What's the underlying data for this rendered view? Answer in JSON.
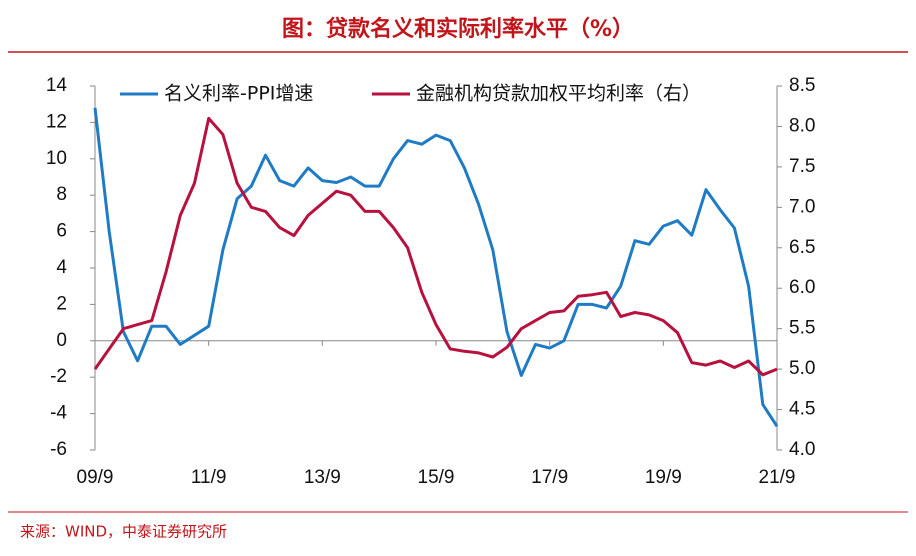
{
  "chart_data": {
    "type": "line",
    "title": "图：贷款名义和实际利率水平（%）",
    "source": "来源：WIND，中泰证券研究所",
    "categories": [
      "09/9",
      null,
      null,
      null,
      null,
      null,
      null,
      null,
      "11/9",
      null,
      null,
      null,
      null,
      null,
      null,
      null,
      "13/9",
      null,
      null,
      null,
      null,
      null,
      null,
      null,
      "15/9",
      null,
      null,
      null,
      null,
      null,
      null,
      null,
      "17/9",
      null,
      null,
      null,
      null,
      null,
      null,
      null,
      "19/9",
      null,
      null,
      null,
      null,
      null,
      null,
      null,
      "21/9"
    ],
    "series": [
      {
        "name": "名义利率-PPI增速",
        "color": "#1f7bc4",
        "values": [
          12.8,
          6,
          0.5,
          -1.1,
          0.8,
          0.8,
          -0.2,
          0.3,
          0.8,
          5,
          7.8,
          8.5,
          10.2,
          8.8,
          8.5,
          9.5,
          8.8,
          8.7,
          9.0,
          8.5,
          8.5,
          10,
          11,
          10.8,
          11.3,
          11,
          9.5,
          7.5,
          5,
          0.5,
          -1.9,
          -0.2,
          -0.4,
          0,
          2,
          2,
          1.8,
          3,
          5.5,
          5.3,
          6.3,
          6.6,
          5.8,
          8.3,
          7.2,
          6.2,
          3,
          -3.5,
          -4.7
        ]
      },
      {
        "name": "金融机构贷款加权平均利率（右）",
        "color": "#b7123f",
        "axis": "y2",
        "values": [
          5.0,
          5.25,
          5.5,
          5.55,
          5.6,
          6.2,
          6.9,
          7.3,
          8.1,
          7.9,
          7.3,
          7.0,
          6.95,
          6.75,
          6.65,
          6.9,
          7.05,
          7.2,
          7.15,
          6.95,
          6.95,
          6.75,
          6.5,
          5.95,
          5.55,
          5.25,
          5.22,
          5.2,
          5.15,
          5.27,
          5.5,
          5.6,
          5.7,
          5.72,
          5.9,
          5.92,
          5.95,
          5.65,
          5.7,
          5.67,
          5.6,
          5.45,
          5.08,
          5.05,
          5.1,
          5.02,
          5.1,
          4.93,
          5.0
        ]
      }
    ],
    "ylim": [
      -6,
      14
    ],
    "yticks": [
      -6,
      -4,
      -2,
      0,
      2,
      4,
      6,
      8,
      10,
      12,
      14
    ],
    "y2lim": [
      4,
      8.5
    ],
    "y2ticks": [
      {
        "value": 4,
        "label": "4.0"
      },
      4.5,
      {
        "value": 5,
        "label": "5.0"
      },
      5.5,
      {
        "value": 6,
        "label": "6.0"
      },
      6.5,
      {
        "value": 7,
        "label": "7.0"
      },
      7.5,
      {
        "value": 8,
        "label": "8.0"
      },
      8.5
    ],
    "legend": "top"
  }
}
